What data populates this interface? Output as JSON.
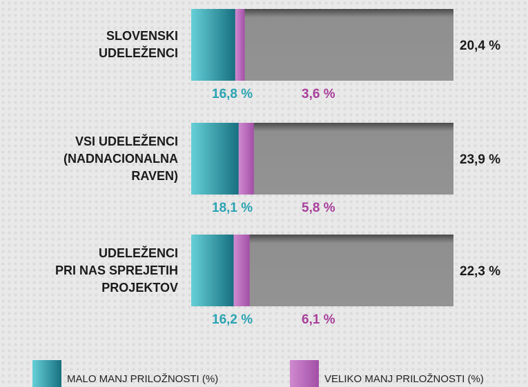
{
  "chart_data": {
    "type": "stacked-barh",
    "categories": [
      "SLOVENSKI\nUDELEŽENCI",
      "VSI UDELEŽENCI\n(NADNACIONALNA\nRAVEN)",
      "UDELEŽENCI\nPRI NAS SPREJETIH\nPROJEKTOV"
    ],
    "series": [
      {
        "name": "MALO MANJ PRILOŽNOSTI (%)",
        "color": "#2aa3b2",
        "values": [
          16.8,
          18.1,
          16.2
        ],
        "value_labels": [
          "16,8 %",
          "18,1 %",
          "16,2 %"
        ]
      },
      {
        "name": "VELIKO MANJ PRILOŽNOSTI (%)",
        "color": "#a83f9b",
        "values": [
          3.6,
          5.8,
          6.1
        ],
        "value_labels": [
          "3,6 %",
          "5,8 %",
          "6,1 %"
        ]
      }
    ],
    "totals": [
      20.4,
      23.9,
      22.3
    ],
    "total_labels": [
      "20,4 %",
      "23,9 %",
      "22,3 %"
    ],
    "xlim": [
      0,
      100
    ]
  }
}
